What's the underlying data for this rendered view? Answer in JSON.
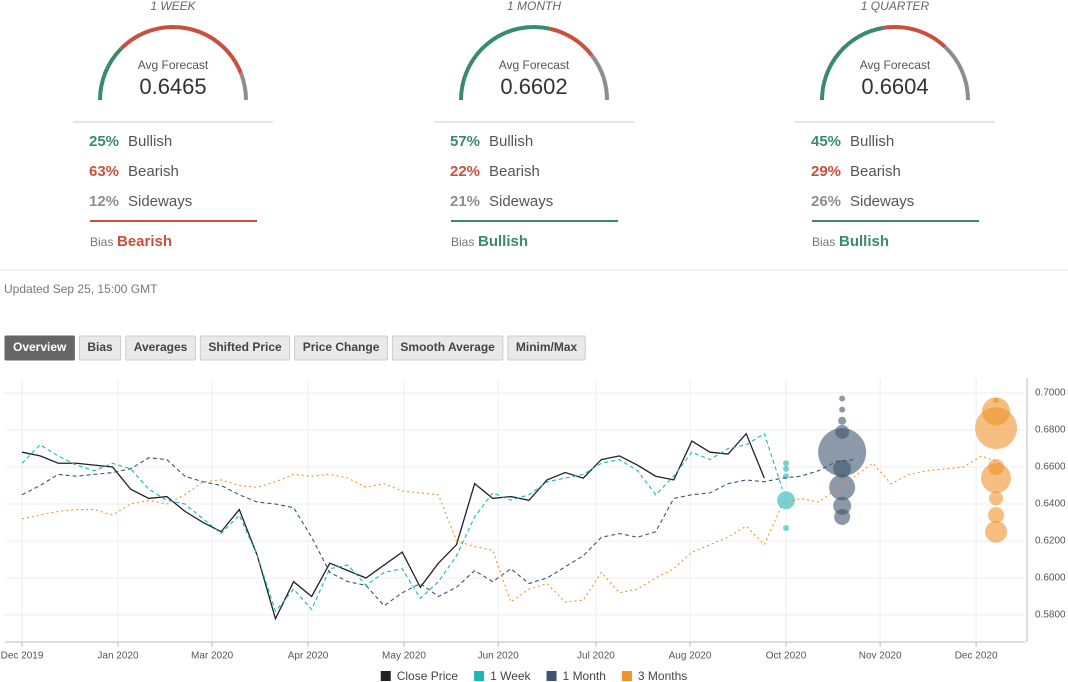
{
  "gauge_colors": [
    "#3a8a70",
    "#c9503c",
    "#8e8e8e"
  ],
  "gauges": [
    {
      "period": "1 WEEK",
      "avg_label": "Avg Forecast",
      "avg": 0.6465,
      "labels": [
        "Bullish",
        "Bearish",
        "Sideways"
      ],
      "values": [
        25,
        63,
        12
      ],
      "value_labels": [
        "25%",
        "63%",
        "12%"
      ],
      "bias_label": "Bias",
      "bias": "Bearish"
    },
    {
      "period": "1 MONTH",
      "avg_label": "Avg Forecast",
      "avg": 0.6602,
      "labels": [
        "Bullish",
        "Bearish",
        "Sideways"
      ],
      "values": [
        57,
        22,
        21
      ],
      "value_labels": [
        "57%",
        "22%",
        "21%"
      ],
      "bias_label": "Bias",
      "bias": "Bullish"
    },
    {
      "period": "1 QUARTER",
      "avg_label": "Avg Forecast",
      "avg": 0.6604,
      "labels": [
        "Bullish",
        "Bearish",
        "Sideways"
      ],
      "values": [
        45,
        29,
        26
      ],
      "value_labels": [
        "45%",
        "29%",
        "26%"
      ],
      "bias_label": "Bias",
      "bias": "Bullish"
    }
  ],
  "updated": "Updated Sep 25, 15:00 GMT",
  "tabs": [
    "Overview",
    "Bias",
    "Averages",
    "Shifted Price",
    "Price Change",
    "Smooth Average",
    "Minim/Max"
  ],
  "chart_data": {
    "type": "line",
    "grid": true,
    "xlim": [
      -0.94,
      55.4
    ],
    "xticks": [
      {
        "value": 0,
        "label": "Dec 2019"
      },
      {
        "value": 5.3,
        "label": "Jan 2020"
      },
      {
        "value": 10.5,
        "label": "Mar 2020"
      },
      {
        "value": 15.8,
        "label": "Apr 2020"
      },
      {
        "value": 21.1,
        "label": "May 2020"
      },
      {
        "value": 26.3,
        "label": "Jun 2020"
      },
      {
        "value": 31.7,
        "label": "Jul 2020"
      },
      {
        "value": 36.9,
        "label": "Aug 2020"
      },
      {
        "value": 42.2,
        "label": "Oct 2020"
      },
      {
        "value": 47.4,
        "label": "Nov 2020"
      },
      {
        "value": 52.7,
        "label": "Dec 2020"
      }
    ],
    "ylim": [
      0.5654,
      0.7081
    ],
    "yticks": [
      {
        "value": 0.58,
        "label": "0.5800"
      },
      {
        "value": 0.6,
        "label": "0.6000"
      },
      {
        "value": 0.62,
        "label": "0.6200"
      },
      {
        "value": 0.64,
        "label": "0.6400"
      },
      {
        "value": 0.66,
        "label": "0.6600"
      },
      {
        "value": 0.68,
        "label": "0.6800"
      },
      {
        "value": 0.7,
        "label": "0.7000"
      }
    ],
    "series": [
      {
        "name": "Close Price",
        "color": "#222222",
        "dash": "solid",
        "values": [
          0.668,
          0.666,
          0.662,
          0.662,
          0.661,
          0.66,
          0.648,
          0.643,
          0.644,
          0.636,
          0.63,
          0.625,
          0.637,
          0.612,
          0.578,
          0.598,
          0.59,
          0.608,
          0.604,
          0.6,
          0.607,
          0.614,
          0.595,
          0.608,
          0.618,
          0.651,
          0.643,
          0.644,
          0.642,
          0.653,
          0.657,
          0.654,
          0.664,
          0.666,
          0.661,
          0.655,
          0.653,
          0.674,
          0.668,
          0.667,
          0.678,
          0.654
        ]
      },
      {
        "name": "1 Week",
        "color": "#1fb5b5",
        "dash": "dashed",
        "values": [
          0.662,
          0.672,
          0.666,
          0.661,
          0.658,
          0.662,
          0.659,
          0.648,
          0.642,
          0.64,
          0.632,
          0.624,
          0.634,
          0.612,
          0.582,
          0.594,
          0.583,
          0.605,
          0.607,
          0.596,
          0.603,
          0.605,
          0.589,
          0.598,
          0.612,
          0.633,
          0.646,
          0.642,
          0.645,
          0.652,
          0.654,
          0.656,
          0.662,
          0.664,
          0.658,
          0.645,
          0.655,
          0.668,
          0.664,
          0.67,
          0.672,
          0.678,
          0.648
        ],
        "bubbles": {
          "x": [
            42.2,
            42.2,
            42.2,
            42.2,
            42.2
          ],
          "values": [
            0.662,
            0.659,
            0.655,
            0.642,
            0.627
          ],
          "sizes": [
            3,
            3,
            3,
            9,
            3
          ]
        }
      },
      {
        "name": "1 Month",
        "color": "#3d5570",
        "dash": "dashed",
        "values": [
          0.645,
          0.65,
          0.656,
          0.655,
          0.656,
          0.657,
          0.659,
          0.665,
          0.664,
          0.655,
          0.652,
          0.65,
          0.645,
          0.641,
          0.64,
          0.638,
          0.622,
          0.603,
          0.598,
          0.596,
          0.585,
          0.592,
          0.597,
          0.59,
          0.595,
          0.604,
          0.598,
          0.605,
          0.597,
          0.6,
          0.606,
          0.612,
          0.622,
          0.624,
          0.622,
          0.625,
          0.643,
          0.645,
          0.646,
          0.651,
          0.653,
          0.652,
          0.654,
          0.655,
          0.658,
          0.663,
          0.664
        ],
        "bubbles": {
          "x": [
            45.3,
            45.3,
            45.3,
            45.3,
            45.3,
            45.3,
            45.3,
            45.3,
            45.3
          ],
          "values": [
            0.697,
            0.691,
            0.685,
            0.679,
            0.668,
            0.659,
            0.649,
            0.639,
            0.633
          ],
          "sizes": [
            3,
            3,
            4,
            7,
            24,
            9,
            13,
            9,
            8
          ]
        }
      },
      {
        "name": "3 Months",
        "color": "#f0932b",
        "dash": "dotted",
        "values": [
          0.632,
          0.634,
          0.636,
          0.637,
          0.637,
          0.634,
          0.64,
          0.642,
          0.64,
          0.645,
          0.652,
          0.653,
          0.65,
          0.649,
          0.652,
          0.656,
          0.655,
          0.656,
          0.654,
          0.649,
          0.651,
          0.647,
          0.646,
          0.645,
          0.62,
          0.617,
          0.615,
          0.587,
          0.594,
          0.597,
          0.587,
          0.588,
          0.603,
          0.592,
          0.594,
          0.6,
          0.605,
          0.614,
          0.618,
          0.622,
          0.628,
          0.618,
          0.64,
          0.643,
          0.641,
          0.648,
          0.655,
          0.662,
          0.651,
          0.656,
          0.658,
          0.659,
          0.66,
          0.666,
          0.662
        ],
        "bubbles": {
          "x": [
            53.8,
            53.8,
            53.8,
            53.8,
            53.8,
            53.8,
            53.8,
            53.8
          ],
          "values": [
            0.696,
            0.69,
            0.681,
            0.66,
            0.654,
            0.643,
            0.634,
            0.625
          ],
          "sizes": [
            3,
            14,
            21,
            8,
            15,
            7,
            8,
            11
          ]
        }
      }
    ]
  }
}
